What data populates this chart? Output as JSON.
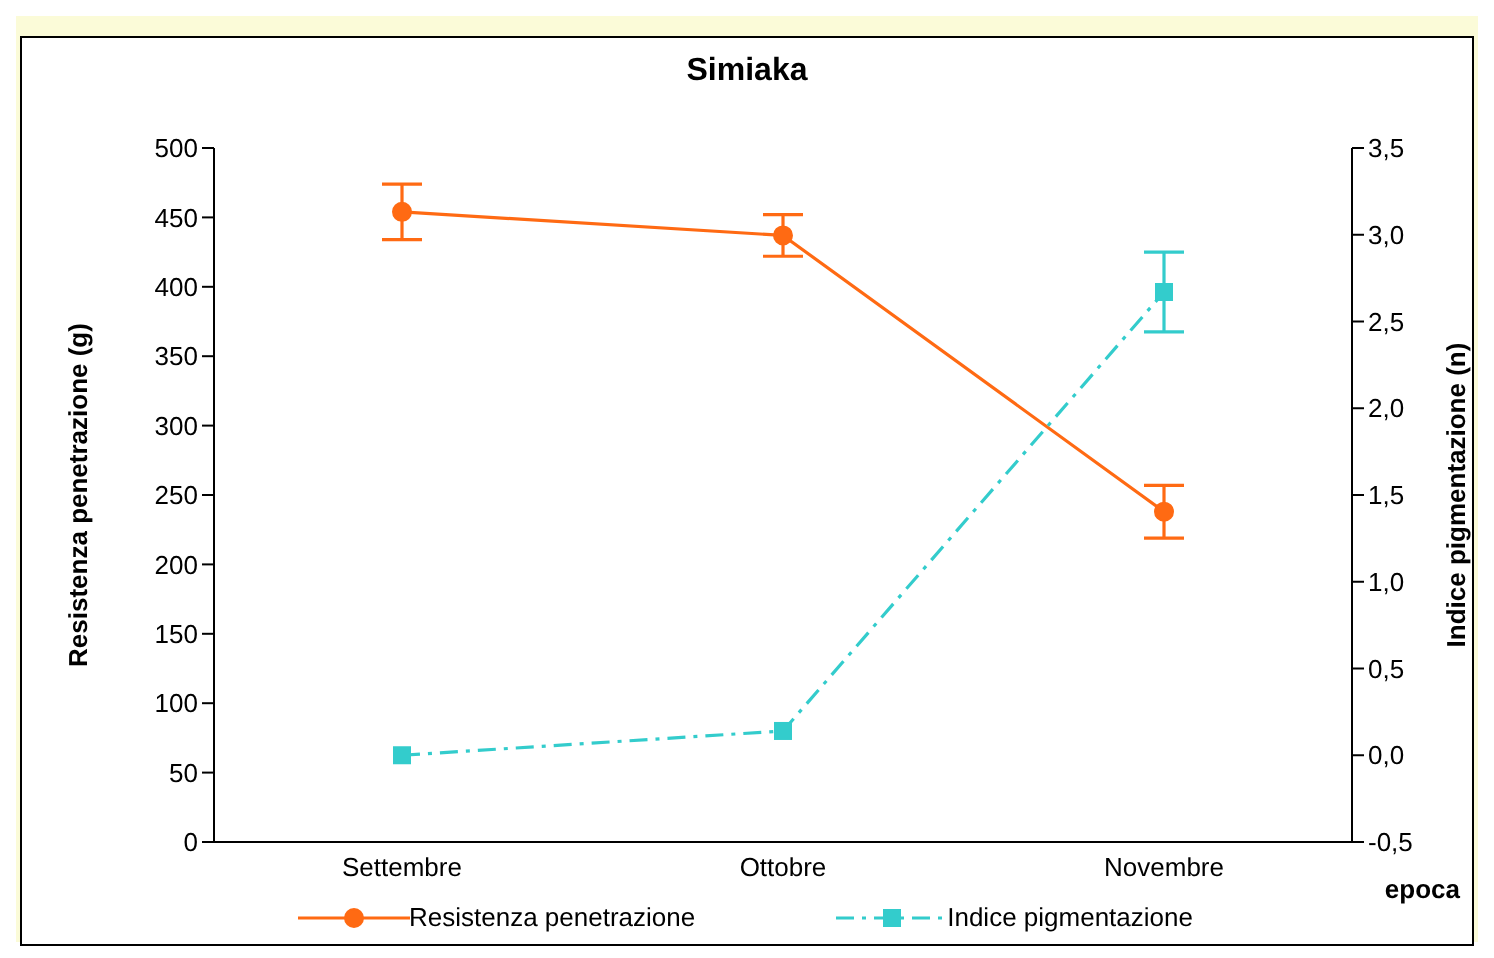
{
  "chart_data": {
    "type": "line",
    "title": "Simiaka",
    "xlabel": "epoca",
    "ylabel": "Resistenza penetrazione (g)",
    "y2label": "Indice pigmentazione (n)",
    "categories": [
      "Settembre",
      "Ottobre",
      "Novembre"
    ],
    "series": [
      {
        "name": "Resistenza penetrazione",
        "color": "#ff6a13",
        "values": [
          454,
          437,
          238
        ],
        "errors": [
          20,
          15,
          19
        ],
        "marker": "circle",
        "line_style": "solid"
      },
      {
        "name": "Indice pigmentazione",
        "color": "#33cccc",
        "values": [
          0.0,
          0.14,
          2.67
        ],
        "errors": [
          null,
          null,
          0.23
        ],
        "axis": "y2",
        "marker": "square",
        "line_style": "dashdot"
      }
    ],
    "ylim": [
      0,
      500
    ],
    "yticks": [
      0,
      50,
      100,
      150,
      200,
      250,
      300,
      350,
      400,
      450,
      500
    ],
    "y2lim": [
      -0.5,
      3.5
    ],
    "y2ticks": [
      {
        "value": -0.5,
        "label": "-0,5"
      },
      {
        "value": 0,
        "label": "0,0"
      },
      {
        "value": 0.5,
        "label": "0,5"
      },
      {
        "value": 1,
        "label": "1,0"
      },
      {
        "value": 1.5,
        "label": "1,5"
      },
      {
        "value": 2,
        "label": "2,0"
      },
      {
        "value": 2.5,
        "label": "2,5"
      },
      {
        "value": 3,
        "label": "3,0"
      },
      {
        "value": 3.5,
        "label": "3,5"
      }
    ],
    "grid": false,
    "legend": "bottom"
  }
}
